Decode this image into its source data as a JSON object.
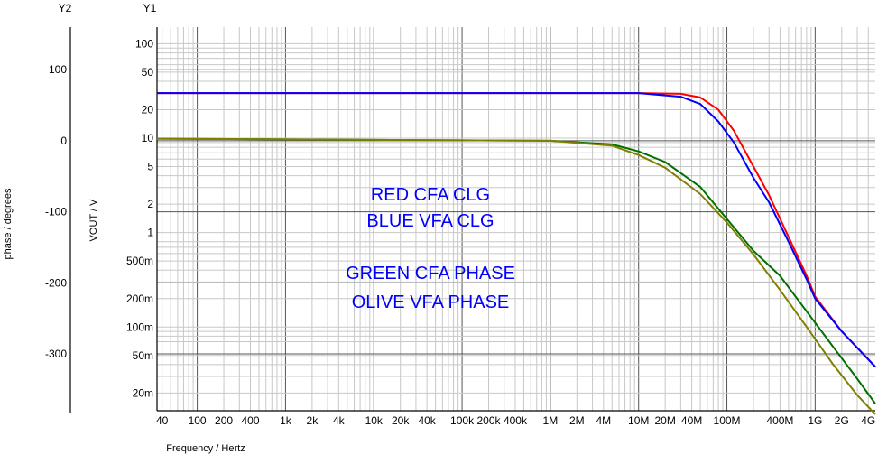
{
  "chart_data": {
    "type": "line",
    "xlabel": "Frequency / Hertz",
    "y1_header": "Y1",
    "y2_header": "Y2",
    "ylabel": "VOUT / V",
    "y2label": "phase / degrees",
    "x_scale": "log",
    "xlim": [
      35,
      4800000000
    ],
    "y1_scale": "log",
    "y1lim": [
      0.013,
      150
    ],
    "y2lim": [
      -380,
      160
    ],
    "grid": true,
    "x_ticks": [
      {
        "v": 40,
        "label": "40"
      },
      {
        "v": 100,
        "label": "100"
      },
      {
        "v": 200,
        "label": "200"
      },
      {
        "v": 400,
        "label": "400"
      },
      {
        "v": 1000,
        "label": "1k"
      },
      {
        "v": 2000,
        "label": "2k"
      },
      {
        "v": 4000,
        "label": "4k"
      },
      {
        "v": 10000,
        "label": "10k"
      },
      {
        "v": 20000,
        "label": "20k"
      },
      {
        "v": 40000,
        "label": "40k"
      },
      {
        "v": 100000,
        "label": "100k"
      },
      {
        "v": 200000,
        "label": "200k"
      },
      {
        "v": 400000,
        "label": "400k"
      },
      {
        "v": 1000000,
        "label": "1M"
      },
      {
        "v": 2000000,
        "label": "2M"
      },
      {
        "v": 4000000,
        "label": "4M"
      },
      {
        "v": 10000000,
        "label": "10M"
      },
      {
        "v": 20000000,
        "label": "20M"
      },
      {
        "v": 40000000,
        "label": "40M"
      },
      {
        "v": 100000000,
        "label": "100M"
      },
      {
        "v": 400000000,
        "label": "400M"
      },
      {
        "v": 1000000000,
        "label": "1G"
      },
      {
        "v": 2000000000,
        "label": "2G"
      },
      {
        "v": 4000000000,
        "label": "4G"
      }
    ],
    "y1_ticks": [
      {
        "v": 100,
        "label": "100"
      },
      {
        "v": 50,
        "label": "50"
      },
      {
        "v": 20,
        "label": "20"
      },
      {
        "v": 10,
        "label": "10"
      },
      {
        "v": 5,
        "label": "5"
      },
      {
        "v": 2,
        "label": "2"
      },
      {
        "v": 1,
        "label": "1"
      },
      {
        "v": 0.5,
        "label": "500m"
      },
      {
        "v": 0.2,
        "label": "200m"
      },
      {
        "v": 0.1,
        "label": "100m"
      },
      {
        "v": 0.05,
        "label": "50m"
      },
      {
        "v": 0.02,
        "label": "20m"
      }
    ],
    "y2_ticks": [
      {
        "v": 100,
        "label": "100"
      },
      {
        "v": 0,
        "label": "0"
      },
      {
        "v": -100,
        "label": "-100"
      },
      {
        "v": -200,
        "label": "-200"
      },
      {
        "v": -300,
        "label": "-300"
      }
    ],
    "annotations": [
      {
        "text": "RED CFA CLG",
        "color": "#0000ff"
      },
      {
        "text": "BLUE VFA CLG",
        "color": "#0000ff"
      },
      {
        "text": "GREEN CFA PHASE",
        "color": "#0000ff"
      },
      {
        "text": "OLIVE VFA PHASE",
        "color": "#0000ff"
      }
    ],
    "series": [
      {
        "color": "#ff0000",
        "axis": "y1",
        "x": [
          35,
          10000000,
          30000000,
          50000000,
          80000000,
          120000000,
          200000000,
          300000000,
          500000000,
          800000000,
          1000000000,
          2000000000,
          4800000000
        ],
        "values": [
          30,
          30,
          29.5,
          27,
          20,
          12,
          5,
          2.5,
          0.9,
          0.35,
          0.21,
          0.09,
          0.038
        ]
      },
      {
        "color": "#0000ff",
        "axis": "y1",
        "x": [
          35,
          10000000,
          30000000,
          50000000,
          80000000,
          120000000,
          200000000,
          300000000,
          500000000,
          800000000,
          1000000000,
          2000000000,
          4800000000
        ],
        "values": [
          30,
          30,
          27.5,
          23,
          15,
          9,
          3.8,
          2.1,
          0.8,
          0.32,
          0.2,
          0.09,
          0.038
        ]
      },
      {
        "color": "#007000",
        "axis": "y2",
        "x": [
          35,
          1000000,
          5000000,
          10000000,
          20000000,
          50000000,
          100000000,
          200000000,
          400000000,
          800000000,
          1600000000,
          3000000000,
          4800000000
        ],
        "values": [
          3,
          0,
          -5,
          -15,
          -30,
          -65,
          -110,
          -155,
          -190,
          -240,
          -290,
          -335,
          -370
        ]
      },
      {
        "color": "#808000",
        "axis": "y2",
        "x": [
          35,
          1000000,
          5000000,
          10000000,
          20000000,
          50000000,
          100000000,
          200000000,
          400000000,
          800000000,
          1600000000,
          3000000000,
          4800000000
        ],
        "values": [
          3,
          0,
          -7,
          -20,
          -38,
          -75,
          -115,
          -160,
          -210,
          -262,
          -315,
          -358,
          -385
        ]
      }
    ]
  }
}
